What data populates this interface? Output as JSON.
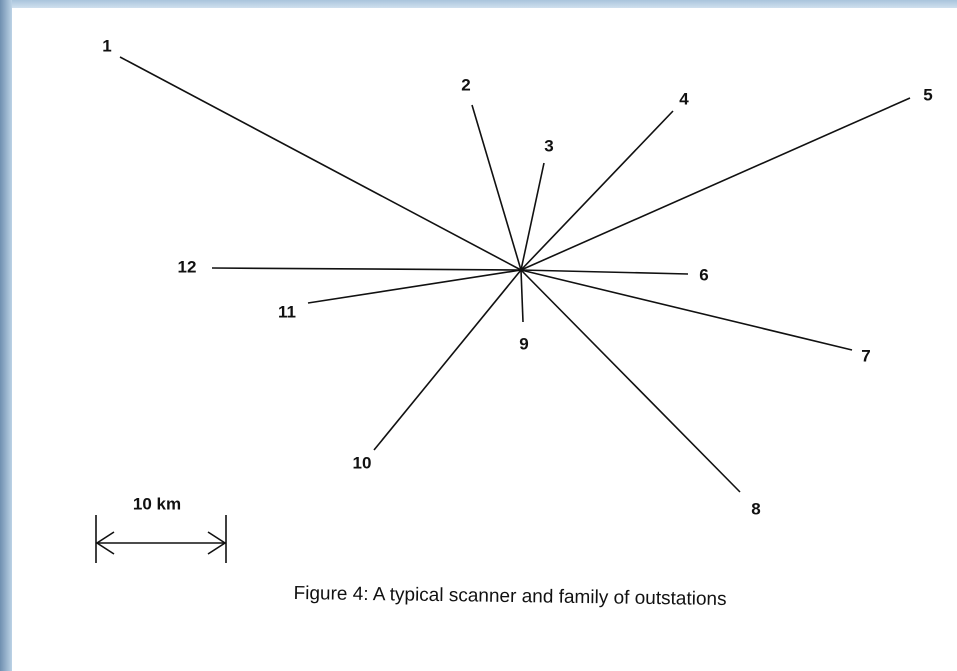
{
  "nodes": [
    {
      "label": "1"
    },
    {
      "label": "2"
    },
    {
      "label": "3"
    },
    {
      "label": "4"
    },
    {
      "label": "5"
    },
    {
      "label": "6"
    },
    {
      "label": "7"
    },
    {
      "label": "8"
    },
    {
      "label": "9"
    },
    {
      "label": "10"
    },
    {
      "label": "11"
    },
    {
      "label": "12"
    }
  ],
  "scale": {
    "label": "10 km"
  },
  "caption": "Figure 4: A typical scanner and family of outstations"
}
